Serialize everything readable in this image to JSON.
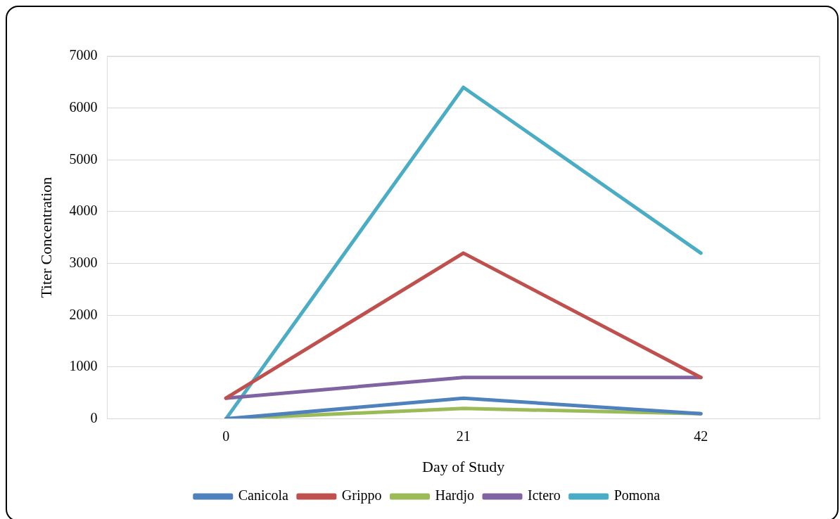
{
  "chart_data": {
    "type": "line",
    "xlabel": "Day of Study",
    "ylabel": "Titer Concentration",
    "categories": [
      "0",
      "21",
      "42"
    ],
    "series": [
      {
        "name": "Canicola",
        "color": "#4f81bd",
        "values": [
          0,
          400,
          100
        ]
      },
      {
        "name": "Grippo",
        "color": "#c0504d",
        "values": [
          400,
          3200,
          800
        ]
      },
      {
        "name": "Hardjo",
        "color": "#9bbb59",
        "values": [
          0,
          200,
          100
        ]
      },
      {
        "name": "Ictero",
        "color": "#8064a2",
        "values": [
          400,
          800,
          800
        ]
      },
      {
        "name": "Pomona",
        "color": "#4bacc6",
        "values": [
          0,
          6400,
          3200
        ]
      }
    ],
    "ylim": [
      0,
      7000
    ],
    "yticks": [
      0,
      1000,
      2000,
      3000,
      4000,
      5000,
      6000,
      7000
    ],
    "grid": "y",
    "legend": "bottom",
    "marker": "none",
    "line_style": "solid"
  }
}
